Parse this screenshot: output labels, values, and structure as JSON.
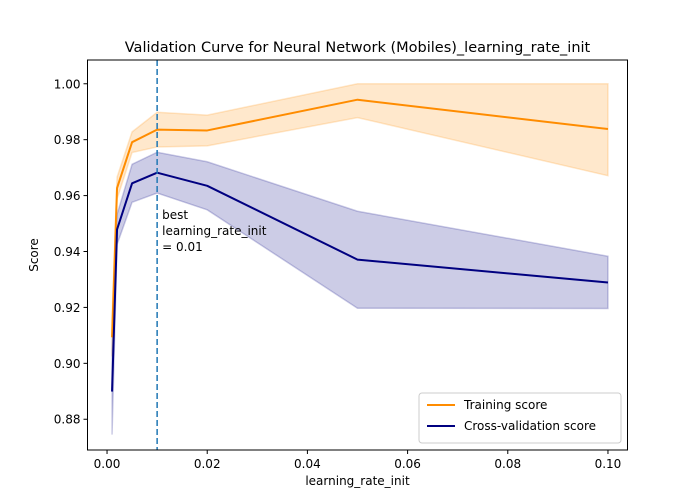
{
  "chart_data": {
    "type": "line",
    "title": "Validation Curve for Neural Network (Mobiles)_learning_rate_init",
    "xlabel": "learning_rate_init",
    "ylabel": "Score",
    "xlim": [
      -0.0039,
      0.1039
    ],
    "ylim": [
      0.869,
      1.0085
    ],
    "xticks": [
      0.0,
      0.02,
      0.04,
      0.06,
      0.08,
      0.1
    ],
    "xtick_labels": [
      "0.00",
      "0.02",
      "0.04",
      "0.06",
      "0.08",
      "0.10"
    ],
    "yticks": [
      0.88,
      0.9,
      0.92,
      0.94,
      0.96,
      0.98,
      1.0
    ],
    "ytick_labels": [
      "0.88",
      "0.90",
      "0.92",
      "0.94",
      "0.96",
      "0.98",
      "1.00"
    ],
    "x": [
      0.001,
      0.002,
      0.005,
      0.01,
      0.02,
      0.05,
      0.1
    ],
    "series": [
      {
        "name": "Training score",
        "color": "#ff8c00",
        "values": [
          0.9093,
          0.9627,
          0.9791,
          0.9836,
          0.9833,
          0.9943,
          0.9838
        ],
        "upper": [
          0.9161,
          0.9666,
          0.9828,
          0.9898,
          0.9888,
          1.0,
          1.0
        ],
        "lower": [
          0.9025,
          0.9588,
          0.9754,
          0.9774,
          0.9778,
          0.9879,
          0.9671
        ]
      },
      {
        "name": "Cross-validation score",
        "color": "#000080",
        "values": [
          0.8899,
          0.9479,
          0.9644,
          0.9682,
          0.9635,
          0.9371,
          0.9289
        ],
        "upper": [
          0.9045,
          0.9533,
          0.9712,
          0.9755,
          0.9721,
          0.9544,
          0.9383
        ],
        "lower": [
          0.8745,
          0.9425,
          0.9576,
          0.9609,
          0.9549,
          0.9197,
          0.9196
        ]
      }
    ],
    "vline": {
      "x": 0.01,
      "color": "#1f77b4",
      "label_lines": [
        "best",
        "learning_rate_init",
        "= 0.01"
      ]
    },
    "grid": false,
    "legend_position": "lower right"
  }
}
